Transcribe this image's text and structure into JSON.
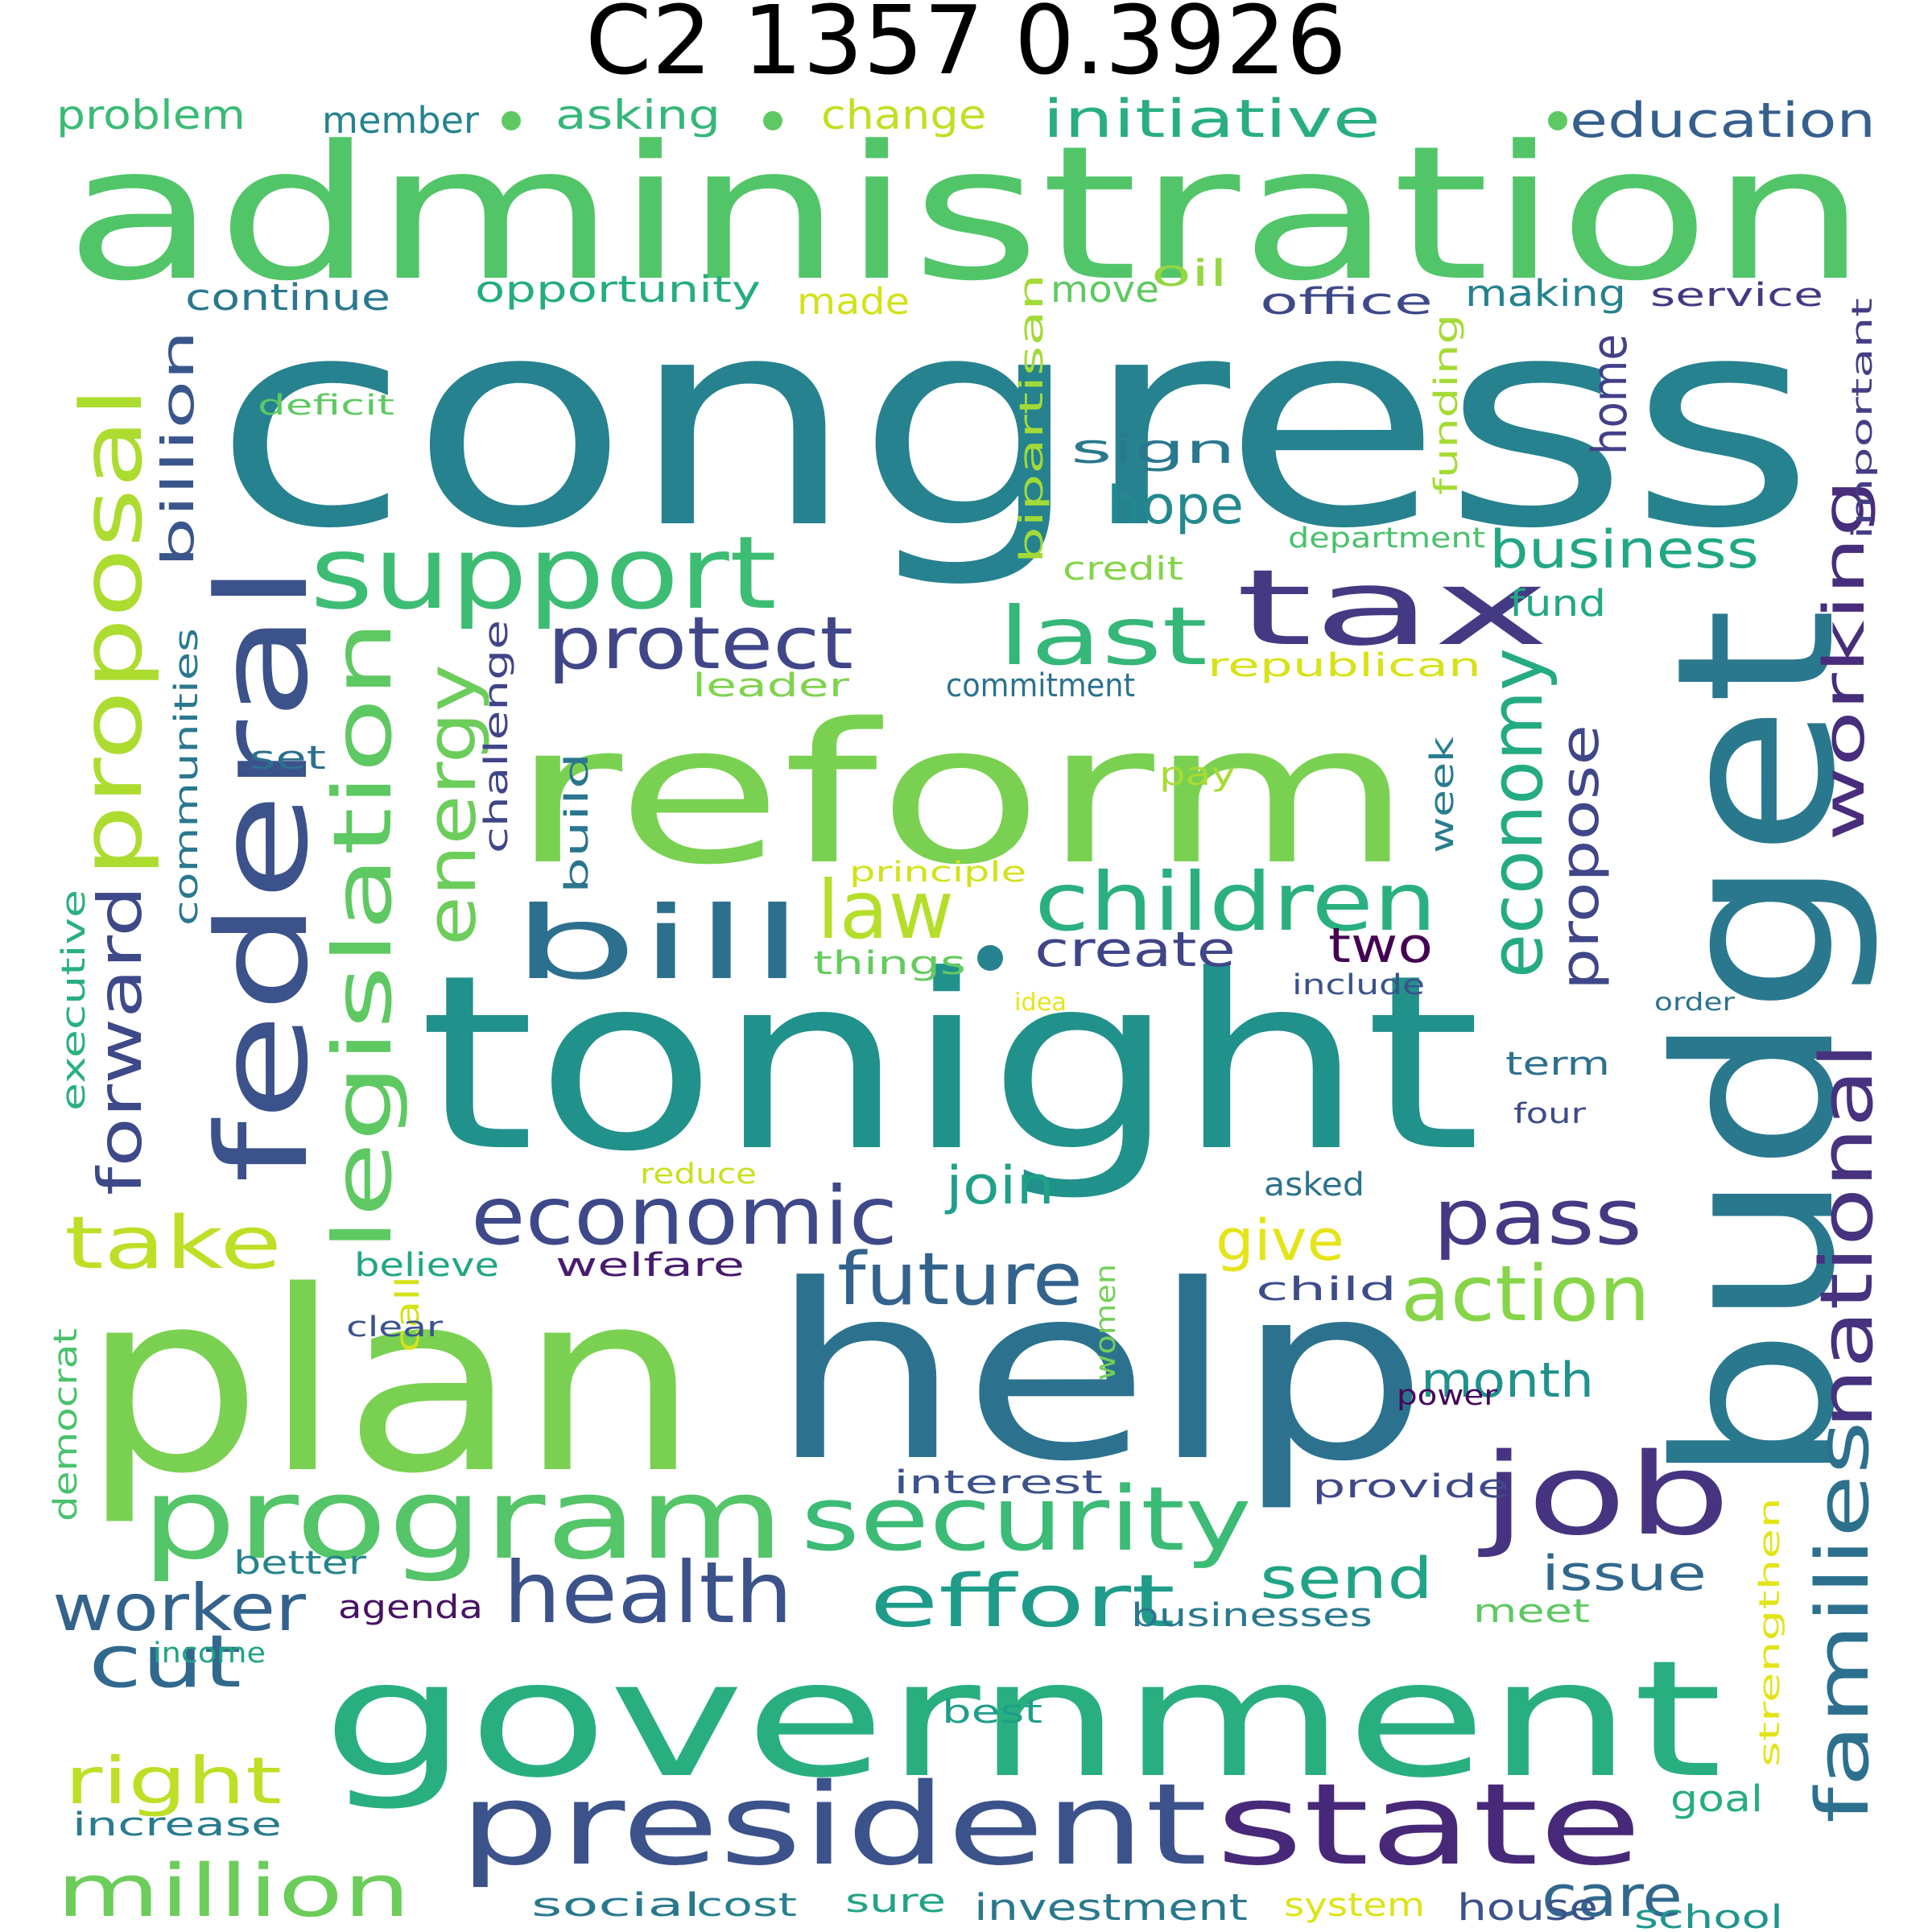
{
  "title": "C2 1357 0.3926",
  "words": [
    {
      "text": "congress",
      "color": "#26828e"
    },
    {
      "text": "administration",
      "color": "#52c569"
    },
    {
      "text": "tonight",
      "color": "#21918c"
    },
    {
      "text": "plan",
      "color": "#7ad151"
    },
    {
      "text": "help",
      "color": "#2c728e"
    },
    {
      "text": "budget",
      "color": "#2a788e"
    },
    {
      "text": "government",
      "color": "#29af7f"
    },
    {
      "text": "reform",
      "color": "#7ad151"
    },
    {
      "text": "federal",
      "color": "#3b528b"
    },
    {
      "text": "support",
      "color": "#3dbc74"
    },
    {
      "text": "tax",
      "color": "#443a83"
    },
    {
      "text": "program",
      "color": "#54c568"
    },
    {
      "text": "president",
      "color": "#3b528b"
    },
    {
      "text": "state",
      "color": "#482878"
    },
    {
      "text": "job",
      "color": "#463480"
    },
    {
      "text": "bill",
      "color": "#2d708e"
    },
    {
      "text": "security",
      "color": "#3bbb75"
    },
    {
      "text": "proposal",
      "color": "#addc30"
    },
    {
      "text": "legislation",
      "color": "#5ec962"
    },
    {
      "text": "children",
      "color": "#2ab07f"
    },
    {
      "text": "economic",
      "color": "#3e4989"
    },
    {
      "text": "health",
      "color": "#3b528b"
    },
    {
      "text": "last",
      "color": "#35b779"
    },
    {
      "text": "protect",
      "color": "#404688"
    },
    {
      "text": "energy",
      "color": "#6ccd5a"
    },
    {
      "text": "law",
      "color": "#b5de2b"
    },
    {
      "text": "future",
      "color": "#33638d"
    },
    {
      "text": "effort",
      "color": "#1e9c89"
    },
    {
      "text": "pass",
      "color": "#443983"
    },
    {
      "text": "action",
      "color": "#86d549"
    },
    {
      "text": "economy",
      "color": "#25ab82"
    },
    {
      "text": "families",
      "color": "#2d708e"
    },
    {
      "text": "national",
      "color": "#46327e"
    },
    {
      "text": "million",
      "color": "#6ccd5a"
    },
    {
      "text": "forward",
      "color": "#3e4989"
    },
    {
      "text": "take",
      "color": "#bddf26"
    },
    {
      "text": "cut",
      "color": "#31688e"
    },
    {
      "text": "right",
      "color": "#bddf26"
    },
    {
      "text": "worker",
      "color": "#33638d"
    },
    {
      "text": "working",
      "color": "#472d7b"
    },
    {
      "text": "business",
      "color": "#22a785"
    },
    {
      "text": "propose",
      "color": "#3f4788"
    },
    {
      "text": "send",
      "color": "#20a386"
    },
    {
      "text": "care",
      "color": "#31688e"
    },
    {
      "text": "give",
      "color": "#e5e419"
    },
    {
      "text": "join",
      "color": "#1fa088"
    },
    {
      "text": "create",
      "color": "#404588"
    },
    {
      "text": "two",
      "color": "#440154"
    },
    {
      "text": "hope",
      "color": "#23898e"
    },
    {
      "text": "billion",
      "color": "#39568c"
    },
    {
      "text": "month",
      "color": "#20928c"
    },
    {
      "text": "home",
      "color": "#424086"
    },
    {
      "text": "issue",
      "color": "#31688e"
    },
    {
      "text": "initiative",
      "color": "#28ae80"
    },
    {
      "text": "education",
      "color": "#355f8d"
    },
    {
      "text": "communities",
      "color": "#2a788e"
    },
    {
      "text": "bipartisan",
      "color": "#a2da37"
    },
    {
      "text": "important",
      "color": "#433e85"
    },
    {
      "text": "continue",
      "color": "#2a788e"
    },
    {
      "text": "opportunity",
      "color": "#25ac82"
    },
    {
      "text": "office",
      "color": "#3e4989"
    },
    {
      "text": "sign",
      "color": "#2a788e"
    },
    {
      "text": "executive",
      "color": "#2ab07f"
    },
    {
      "text": "problem",
      "color": "#3bbb75"
    },
    {
      "text": "member",
      "color": "#25838e"
    },
    {
      "text": "asking",
      "color": "#35b779"
    },
    {
      "text": "change",
      "color": "#c2df23"
    },
    {
      "text": "made",
      "color": "#d2e21b"
    },
    {
      "text": "move",
      "color": "#5ec962"
    },
    {
      "text": "oil",
      "color": "#93d741"
    },
    {
      "text": "making",
      "color": "#26828e"
    },
    {
      "text": "service",
      "color": "#453882"
    },
    {
      "text": "funding",
      "color": "#a5db36"
    },
    {
      "text": "deficit",
      "color": "#5ec962"
    },
    {
      "text": "credit",
      "color": "#84d44b"
    },
    {
      "text": "department",
      "color": "#4ac16d"
    },
    {
      "text": "fund",
      "color": "#22a884"
    },
    {
      "text": "republican",
      "color": "#d8e219"
    },
    {
      "text": "commitment",
      "color": "#2c728e"
    },
    {
      "text": "leader",
      "color": "#7fd34e"
    },
    {
      "text": "challenge",
      "color": "#404588"
    },
    {
      "text": "set",
      "color": "#2d708e"
    },
    {
      "text": "pay",
      "color": "#a8db34"
    },
    {
      "text": "week",
      "color": "#287d8e"
    },
    {
      "text": "build",
      "color": "#2a768e"
    },
    {
      "text": "principle",
      "color": "#d2e21b"
    },
    {
      "text": "things",
      "color": "#65cb5e"
    },
    {
      "text": "include",
      "color": "#3b528b"
    },
    {
      "text": "idea",
      "color": "#e7e419"
    },
    {
      "text": "order",
      "color": "#2c728e"
    },
    {
      "text": "term",
      "color": "#2d718e"
    },
    {
      "text": "four",
      "color": "#3e4a89"
    },
    {
      "text": "asked",
      "color": "#2c728e"
    },
    {
      "text": "call",
      "color": "#d5e21a"
    },
    {
      "text": "reduce",
      "color": "#c8e020"
    },
    {
      "text": "believe",
      "color": "#21a685"
    },
    {
      "text": "welfare",
      "color": "#481b6d"
    },
    {
      "text": "child",
      "color": "#3d4d8a"
    },
    {
      "text": "clear",
      "color": "#3b528b"
    },
    {
      "text": "women",
      "color": "#73d056"
    },
    {
      "text": "democrat",
      "color": "#4ac16d"
    },
    {
      "text": "power",
      "color": "#46085c"
    },
    {
      "text": "interest",
      "color": "#3b528b"
    },
    {
      "text": "provide",
      "color": "#3e4989"
    },
    {
      "text": "strengthen",
      "color": "#e2e418"
    },
    {
      "text": "better",
      "color": "#25848e"
    },
    {
      "text": "agenda",
      "color": "#471164"
    },
    {
      "text": "businesses",
      "color": "#2a788e"
    },
    {
      "text": "meet",
      "color": "#5ec962"
    },
    {
      "text": "income",
      "color": "#20a386"
    },
    {
      "text": "best",
      "color": "#1f9e89"
    },
    {
      "text": "goal",
      "color": "#26ad81"
    },
    {
      "text": "increase",
      "color": "#287c8e"
    },
    {
      "text": "social",
      "color": "#2a788e"
    },
    {
      "text": "cost",
      "color": "#277f8e"
    },
    {
      "text": "sure",
      "color": "#20a386"
    },
    {
      "text": "investment",
      "color": "#2a788e"
    },
    {
      "text": "system",
      "color": "#dde318"
    },
    {
      "text": "house",
      "color": "#3b528b"
    },
    {
      "text": "school",
      "color": "#1f968b"
    }
  ]
}
